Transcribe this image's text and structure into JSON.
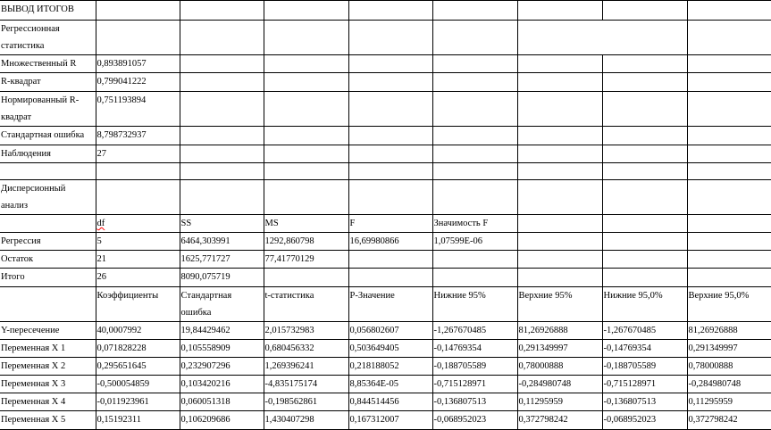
{
  "title": "ВЫВОД ИТОГОВ",
  "rows": [
    [
      "ВЫВОД ИТОГОВ",
      "",
      "",
      "",
      "",
      "",
      "",
      "",
      ""
    ],
    [
      "Регрессионная статистика",
      "",
      "",
      "",
      "",
      "",
      "",
      "",
      ""
    ],
    [
      "Множественный R",
      "0,893891057",
      "",
      "",
      "",
      "",
      "",
      "",
      ""
    ],
    [
      "R-квадрат",
      "0,799041222",
      "",
      "",
      "",
      "",
      "",
      "",
      ""
    ],
    [
      "Нормированный R-квадрат",
      "0,751193894",
      "",
      "",
      "",
      "",
      "",
      "",
      ""
    ],
    [
      "Стандартная ошибка",
      "8,798732937",
      "",
      "",
      "",
      "",
      "",
      "",
      ""
    ],
    [
      "Наблюдения",
      "27",
      "",
      "",
      "",
      "",
      "",
      "",
      ""
    ],
    [
      "",
      "",
      "",
      "",
      "",
      "",
      "",
      "",
      ""
    ],
    [
      "Дисперсионный анализ",
      "",
      "",
      "",
      "",
      "",
      "",
      "",
      ""
    ],
    [
      "",
      "df",
      "SS",
      "MS",
      "F",
      "Значимость F",
      "",
      "",
      ""
    ],
    [
      "Регрессия",
      "5",
      "6464,303991",
      "1292,860798",
      "16,69980866",
      "1,07599E-06",
      "",
      "",
      ""
    ],
    [
      "Остаток",
      "21",
      "1625,771727",
      "77,41770129",
      "",
      "",
      "",
      "",
      ""
    ],
    [
      "Итого",
      "26",
      "8090,075719",
      "",
      "",
      "",
      "",
      "",
      ""
    ],
    [
      "",
      "Коэффициенты",
      "Стандартная ошибка",
      "t-статистика",
      "P-Значение",
      "Нижние 95%",
      "Верхние 95%",
      "Нижние 95,0%",
      "Верхние 95,0%"
    ],
    [
      "Y-пересечение",
      "40,0007992",
      "19,84429462",
      "2,015732983",
      "0,056802607",
      "-1,267670485",
      "81,26926888",
      "-1,267670485",
      "81,26926888"
    ],
    [
      "Переменная X 1",
      "0,071828228",
      "0,105558909",
      "0,680456332",
      "0,503649405",
      "-0,14769354",
      "0,291349997",
      "-0,14769354",
      "0,291349997"
    ],
    [
      "Переменная X 2",
      "0,295651645",
      "0,232907296",
      "1,269396241",
      "0,218188052",
      "-0,188705589",
      "0,78000888",
      "-0,188705589",
      "0,78000888"
    ],
    [
      "Переменная X 3",
      "-0,500054859",
      "0,103420216",
      "-4,835175174",
      "8,85364E-05",
      "-0,715128971",
      "-0,284980748",
      "-0,715128971",
      "-0,284980748"
    ],
    [
      "Переменная X 4",
      "-0,011923961",
      "0,060051318",
      "-0,198562861",
      "0,844514456",
      "-0,136807513",
      "0,11295959",
      "-0,136807513",
      "0,11295959"
    ],
    [
      "Переменная X 5",
      "0,15192311",
      "0,106209686",
      "1,430407298",
      "0,167312007",
      "-0,068952023",
      "0,372798242",
      "-0,068952023",
      "0,372798242"
    ]
  ]
}
